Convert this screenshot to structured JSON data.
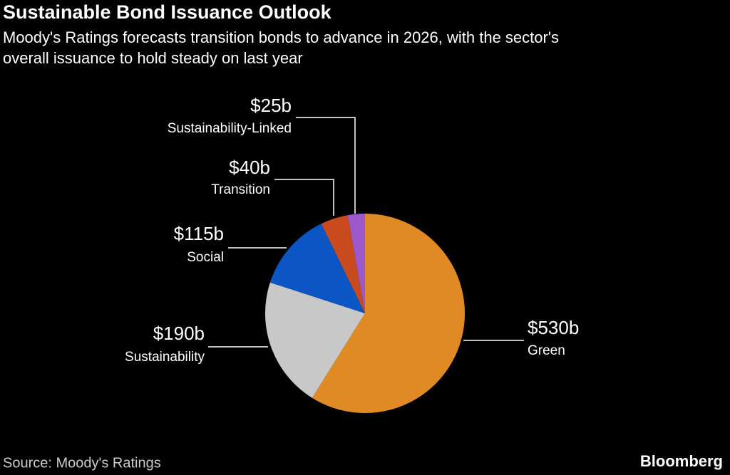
{
  "chart_data": {
    "type": "pie",
    "title": "Sustainable Bond Issuance Outlook",
    "subtitle": [
      "Moody's Ratings forecasts transition bonds to advance in 2026, with the sector's",
      "overall issuance to hold steady on last year"
    ],
    "categories": [
      "Green",
      "Sustainability",
      "Social",
      "Transition",
      "Sustainability-Linked"
    ],
    "values": [
      530,
      190,
      115,
      40,
      25
    ],
    "value_labels": [
      "$530b",
      "$190b",
      "$115b",
      "$40b",
      "$25b"
    ],
    "colors": [
      "#e08a26",
      "#c8c8c8",
      "#0b56c4",
      "#c84a1e",
      "#9b59c9"
    ],
    "source": "Source: Moody's Ratings",
    "brand": "Bloomberg"
  }
}
